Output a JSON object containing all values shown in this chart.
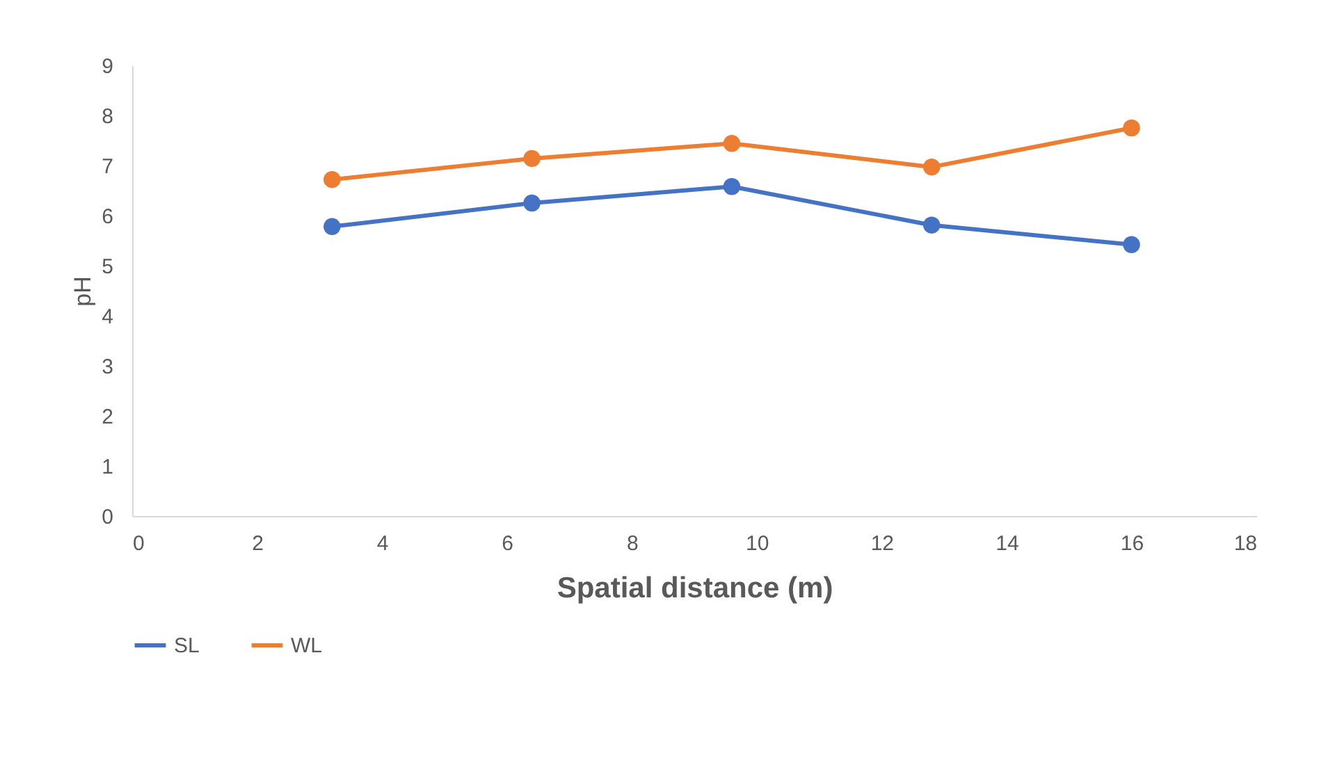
{
  "chart_data": {
    "type": "line",
    "xlabel": "Spatial distance (m)",
    "ylabel": "pH",
    "x": [
      3.2,
      6.4,
      9.6,
      12.8,
      16
    ],
    "series": [
      {
        "name": "SL",
        "color": "#4472c4",
        "values": [
          5.78,
          6.25,
          6.58,
          5.81,
          5.42
        ]
      },
      {
        "name": "WL",
        "color": "#ed7d31",
        "values": [
          6.72,
          7.14,
          7.44,
          6.97,
          7.75
        ]
      }
    ],
    "xlim": [
      0,
      18
    ],
    "xticks": [
      0,
      2,
      4,
      6,
      8,
      10,
      12,
      14,
      16,
      18
    ],
    "ylim": [
      0,
      9
    ],
    "yticks": [
      0,
      1,
      2,
      3,
      4,
      5,
      6,
      7,
      8,
      9
    ],
    "grid": false,
    "legend": "bottom",
    "marker": "circle",
    "line_style": "solid"
  }
}
